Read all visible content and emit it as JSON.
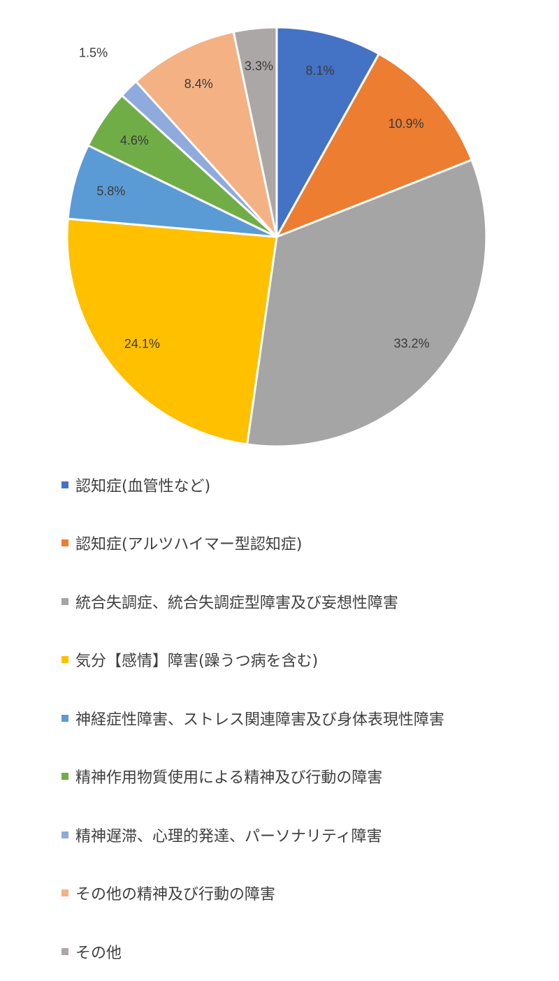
{
  "chart_data": {
    "type": "pie",
    "title": "",
    "start_angle_deg": 0,
    "direction": "clockwise",
    "legend_position": "bottom",
    "categories": [
      "認知症(血管性など)",
      "認知症(アルツハイマー型認知症)",
      "統合失調症、統合失調症型障害及び妄想性障害",
      "気分【感情】障害(躁うつ病を含む)",
      "神経症性障害、ストレス関連障害及び身体表現性障害",
      "精神作用物質使用による精神及び行動の障害",
      "精神遅滞、心理的発達、パーソナリティ障害",
      "その他の精神及び行動の障害",
      "その他"
    ],
    "values": [
      8.1,
      10.9,
      33.2,
      24.1,
      5.8,
      4.6,
      1.5,
      8.4,
      3.3
    ],
    "labels": [
      "8.1%",
      "10.9%",
      "33.2%",
      "24.1%",
      "5.8%",
      "4.6%",
      "1.5%",
      "8.4%",
      "3.3%"
    ],
    "colors": [
      "#4472C4",
      "#ED7D31",
      "#A5A5A5",
      "#FFC000",
      "#5B9BD5",
      "#70AD47",
      "#8FAADC",
      "#F4B183",
      "#ABA7A6"
    ],
    "label_outside": [
      false,
      false,
      false,
      false,
      false,
      false,
      true,
      false,
      false
    ]
  }
}
